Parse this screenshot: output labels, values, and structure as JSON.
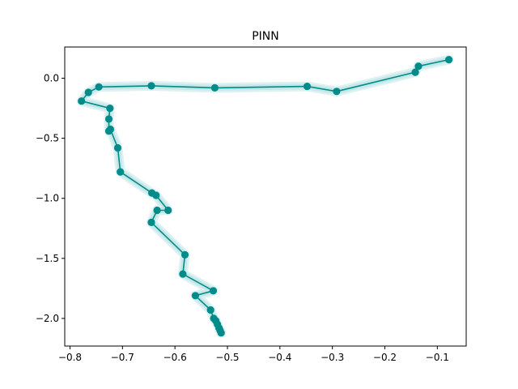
{
  "chart_data": {
    "type": "line",
    "title": "PINN",
    "xlabel": "",
    "ylabel": "",
    "xlim": [
      -0.81,
      -0.045
    ],
    "ylim": [
      -2.23,
      0.26
    ],
    "grid": false,
    "xticks": [
      -0.8,
      -0.7,
      -0.6,
      -0.5,
      -0.4,
      -0.3,
      -0.2,
      -0.1
    ],
    "xtick_labels": [
      "−0.8",
      "−0.7",
      "−0.6",
      "−0.5",
      "−0.4",
      "−0.3",
      "−0.2",
      "−0.1"
    ],
    "yticks": [
      0.0,
      -0.5,
      -1.0,
      -1.5,
      -2.0
    ],
    "ytick_labels": [
      "0.0",
      "−0.5",
      "−1.0",
      "−1.5",
      "−2.0"
    ],
    "series": [
      {
        "color": "#008b8b",
        "marker": "circle",
        "halo_color": "#b2dfdf",
        "points": [
          [
            -0.078,
            0.155
          ],
          [
            -0.136,
            0.1
          ],
          [
            -0.142,
            0.05
          ],
          [
            -0.292,
            -0.11
          ],
          [
            -0.348,
            -0.068
          ],
          [
            -0.524,
            -0.08
          ],
          [
            -0.645,
            -0.063
          ],
          [
            -0.745,
            -0.073
          ],
          [
            -0.765,
            -0.118
          ],
          [
            -0.778,
            -0.19
          ],
          [
            -0.724,
            -0.25
          ],
          [
            -0.726,
            -0.34
          ],
          [
            -0.726,
            -0.44
          ],
          [
            -0.723,
            -0.425
          ],
          [
            -0.709,
            -0.58
          ],
          [
            -0.704,
            -0.78
          ],
          [
            -0.644,
            -0.955
          ],
          [
            -0.636,
            -0.975
          ],
          [
            -0.613,
            -1.1
          ],
          [
            -0.634,
            -1.1
          ],
          [
            -0.645,
            -1.2
          ],
          [
            -0.581,
            -1.47
          ],
          [
            -0.585,
            -1.63
          ],
          [
            -0.527,
            -1.77
          ],
          [
            -0.561,
            -1.81
          ],
          [
            -0.532,
            -1.93
          ],
          [
            -0.526,
            -2.0
          ],
          [
            -0.522,
            -2.02
          ],
          [
            -0.519,
            -2.05
          ],
          [
            -0.516,
            -2.08
          ],
          [
            -0.514,
            -2.1
          ],
          [
            -0.512,
            -2.12
          ]
        ]
      }
    ]
  }
}
